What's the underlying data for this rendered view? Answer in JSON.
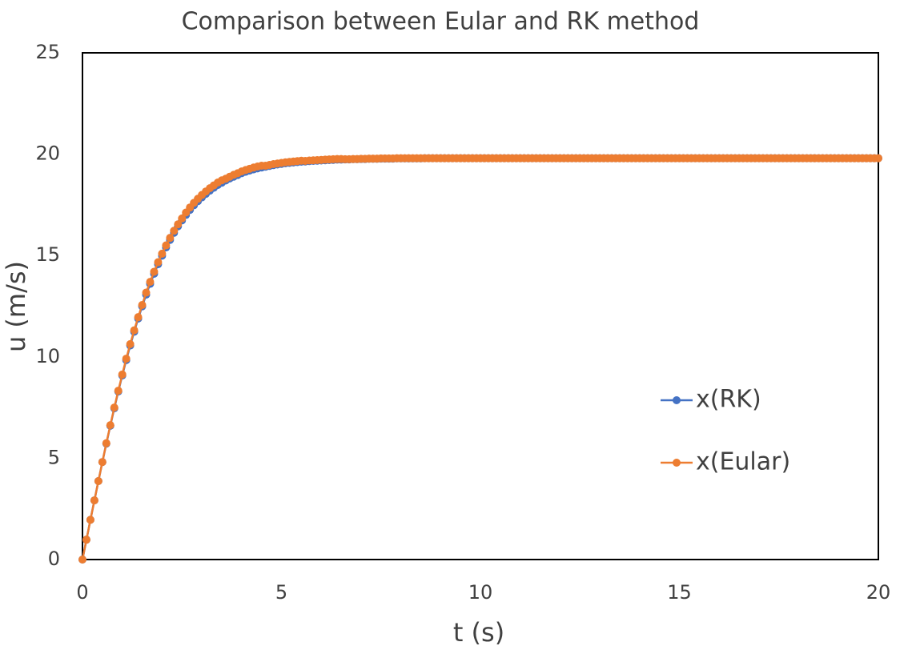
{
  "chart_data": {
    "type": "line",
    "title": "Comparison between Eular and RK method",
    "x_label": "t (s)",
    "y_label": "u (m/s)",
    "x": [
      0,
      0.1,
      0.2,
      0.3,
      0.4,
      0.5,
      0.6,
      0.7,
      0.8,
      0.9,
      1,
      1.1,
      1.2,
      1.3,
      1.4,
      1.5,
      1.6,
      1.7,
      1.8,
      1.9,
      2,
      2.1,
      2.2,
      2.3,
      2.4,
      2.5,
      2.6,
      2.7,
      2.8,
      2.9,
      3,
      3.1,
      3.2,
      3.3,
      3.4,
      3.5,
      3.6,
      3.7,
      3.8,
      3.9,
      4,
      4.1,
      4.2,
      4.3,
      4.4,
      4.5,
      4.6,
      4.7,
      4.8,
      4.9,
      5,
      5.1,
      5.2,
      5.3,
      5.4,
      5.5,
      5.6,
      5.7,
      5.8,
      5.9,
      6,
      6.1,
      6.2,
      6.3,
      6.4,
      6.5,
      6.6,
      6.7,
      6.8,
      6.9,
      7,
      7.1,
      7.2,
      7.3,
      7.4,
      7.5,
      7.6,
      7.7,
      7.8,
      7.9,
      8,
      8.1,
      8.2,
      8.3,
      8.4,
      8.5,
      8.6,
      8.7,
      8.8,
      8.9,
      9,
      9.1,
      9.2,
      9.3,
      9.4,
      9.5,
      9.6,
      9.7,
      9.8,
      9.9,
      10,
      10.1,
      10.2,
      10.3,
      10.4,
      10.5,
      10.6,
      10.7,
      10.8,
      10.9,
      11,
      11.1,
      11.2,
      11.3,
      11.4,
      11.5,
      11.6,
      11.7,
      11.8,
      11.9,
      12,
      12.1,
      12.2,
      12.3,
      12.4,
      12.5,
      12.6,
      12.7,
      12.8,
      12.9,
      13,
      13.1,
      13.2,
      13.3,
      13.4,
      13.5,
      13.6,
      13.7,
      13.8,
      13.9,
      14,
      14.1,
      14.2,
      14.3,
      14.4,
      14.5,
      14.6,
      14.7,
      14.8,
      14.9,
      15,
      15.1,
      15.2,
      15.3,
      15.4,
      15.5,
      15.6,
      15.7,
      15.8,
      15.9,
      16,
      16.1,
      16.2,
      16.3,
      16.4,
      16.5,
      16.6,
      16.7,
      16.8,
      16.9,
      17,
      17.1,
      17.2,
      17.3,
      17.4,
      17.5,
      17.6,
      17.7,
      17.8,
      17.9,
      18,
      18.1,
      18.2,
      18.3,
      18.4,
      18.5,
      18.6,
      18.7,
      18.8,
      18.9,
      19,
      19.1,
      19.2,
      19.3,
      19.4,
      19.5,
      19.6,
      19.7,
      19.8,
      19.9,
      20
    ],
    "series": [
      {
        "name": "x(RK)",
        "color": "#4472c4",
        "values": [
          0,
          0.98,
          1.96,
          2.92,
          3.87,
          4.81,
          5.72,
          6.6,
          7.46,
          8.29,
          9.08,
          9.84,
          10.56,
          11.24,
          11.89,
          12.49,
          13.07,
          13.6,
          14.1,
          14.57,
          14.99,
          15.4,
          15.77,
          16.12,
          16.44,
          16.73,
          17,
          17.25,
          17.48,
          17.68,
          17.87,
          18.04,
          18.2,
          18.34,
          18.48,
          18.59,
          18.7,
          18.8,
          18.89,
          18.97,
          19.06,
          19.13,
          19.19,
          19.25,
          19.3,
          19.34,
          19.38,
          19.42,
          19.46,
          19.49,
          19.52,
          19.55,
          19.57,
          19.59,
          19.61,
          19.63,
          19.64,
          19.66,
          19.67,
          19.68,
          19.69,
          19.7,
          19.71,
          19.72,
          19.73,
          19.73,
          19.74,
          19.74,
          19.75,
          19.75,
          19.76,
          19.76,
          19.77,
          19.77,
          19.77,
          19.78,
          19.78,
          19.78,
          19.78,
          19.79,
          19.79,
          19.79,
          19.79,
          19.79,
          19.79,
          19.79,
          19.8,
          19.8,
          19.8,
          19.8,
          19.8,
          19.8,
          19.8,
          19.8,
          19.8,
          19.8,
          19.8,
          19.8,
          19.8,
          19.8,
          19.8,
          19.8,
          19.8,
          19.8,
          19.8,
          19.8,
          19.8,
          19.8,
          19.8,
          19.8,
          19.8,
          19.8,
          19.8,
          19.8,
          19.8,
          19.8,
          19.8,
          19.8,
          19.8,
          19.8,
          19.8,
          19.8,
          19.8,
          19.8,
          19.8,
          19.8,
          19.8,
          19.8,
          19.8,
          19.8,
          19.8,
          19.8,
          19.8,
          19.8,
          19.8,
          19.8,
          19.8,
          19.8,
          19.8,
          19.8,
          19.8,
          19.8,
          19.8,
          19.8,
          19.8,
          19.8,
          19.8,
          19.8,
          19.8,
          19.8,
          19.8,
          19.8,
          19.8,
          19.8,
          19.8,
          19.8,
          19.8,
          19.8,
          19.8,
          19.8,
          19.8,
          19.8,
          19.8,
          19.8,
          19.8,
          19.8,
          19.8,
          19.8,
          19.8,
          19.8,
          19.8,
          19.8,
          19.8,
          19.8,
          19.8,
          19.8,
          19.8,
          19.8,
          19.8,
          19.8,
          19.8,
          19.8,
          19.8,
          19.8,
          19.8,
          19.8,
          19.8,
          19.8,
          19.8,
          19.8,
          19.8,
          19.8,
          19.8,
          19.8,
          19.8,
          19.8,
          19.8,
          19.8,
          19.8,
          19.8,
          19.8
        ]
      },
      {
        "name": "x(Eular)",
        "color": "#ed7d31",
        "values": [
          0,
          0.98,
          1.96,
          2.92,
          3.87,
          4.81,
          5.74,
          6.63,
          7.5,
          8.33,
          9.13,
          9.91,
          10.63,
          11.31,
          11.96,
          12.56,
          13.17,
          13.7,
          14.2,
          14.67,
          15.09,
          15.5,
          15.87,
          16.22,
          16.54,
          16.83,
          17.12,
          17.37,
          17.6,
          17.8,
          17.99,
          18.16,
          18.32,
          18.46,
          18.6,
          18.71,
          18.79,
          18.89,
          18.98,
          19.06,
          19.15,
          19.22,
          19.28,
          19.34,
          19.39,
          19.43,
          19.43,
          19.47,
          19.51,
          19.54,
          19.57,
          19.6,
          19.62,
          19.64,
          19.66,
          19.68,
          19.67,
          19.69,
          19.7,
          19.71,
          19.72,
          19.73,
          19.74,
          19.75,
          19.76,
          19.76,
          19.75,
          19.75,
          19.76,
          19.76,
          19.77,
          19.77,
          19.78,
          19.78,
          19.78,
          19.79,
          19.79,
          19.79,
          19.79,
          19.8,
          19.8,
          19.8,
          19.8,
          19.8,
          19.8,
          19.8,
          19.8,
          19.8,
          19.8,
          19.8,
          19.8,
          19.8,
          19.8,
          19.8,
          19.8,
          19.8,
          19.8,
          19.8,
          19.8,
          19.8,
          19.8,
          19.8,
          19.8,
          19.8,
          19.8,
          19.8,
          19.8,
          19.8,
          19.8,
          19.8,
          19.8,
          19.8,
          19.8,
          19.8,
          19.8,
          19.8,
          19.8,
          19.8,
          19.8,
          19.8,
          19.8,
          19.8,
          19.8,
          19.8,
          19.8,
          19.8,
          19.8,
          19.8,
          19.8,
          19.8,
          19.8,
          19.8,
          19.8,
          19.8,
          19.8,
          19.8,
          19.8,
          19.8,
          19.8,
          19.8,
          19.8,
          19.8,
          19.8,
          19.8,
          19.8,
          19.8,
          19.8,
          19.8,
          19.8,
          19.8,
          19.8,
          19.8,
          19.8,
          19.8,
          19.8,
          19.8,
          19.8,
          19.8,
          19.8,
          19.8,
          19.8,
          19.8,
          19.8,
          19.8,
          19.8,
          19.8,
          19.8,
          19.8,
          19.8,
          19.8,
          19.8,
          19.8,
          19.8,
          19.8,
          19.8,
          19.8,
          19.8,
          19.8,
          19.8,
          19.8,
          19.8,
          19.8,
          19.8,
          19.8,
          19.8,
          19.8,
          19.8,
          19.8,
          19.8,
          19.8,
          19.8,
          19.8,
          19.8,
          19.8,
          19.8,
          19.8,
          19.8,
          19.8,
          19.8,
          19.8,
          19.8
        ]
      }
    ],
    "xlim": [
      0,
      20
    ],
    "xticks": [
      0,
      5,
      10,
      15,
      20
    ],
    "ylim": [
      0,
      25
    ],
    "yticks": [
      0,
      5,
      10,
      15,
      20,
      25
    ],
    "grid": false,
    "legend": "right"
  }
}
